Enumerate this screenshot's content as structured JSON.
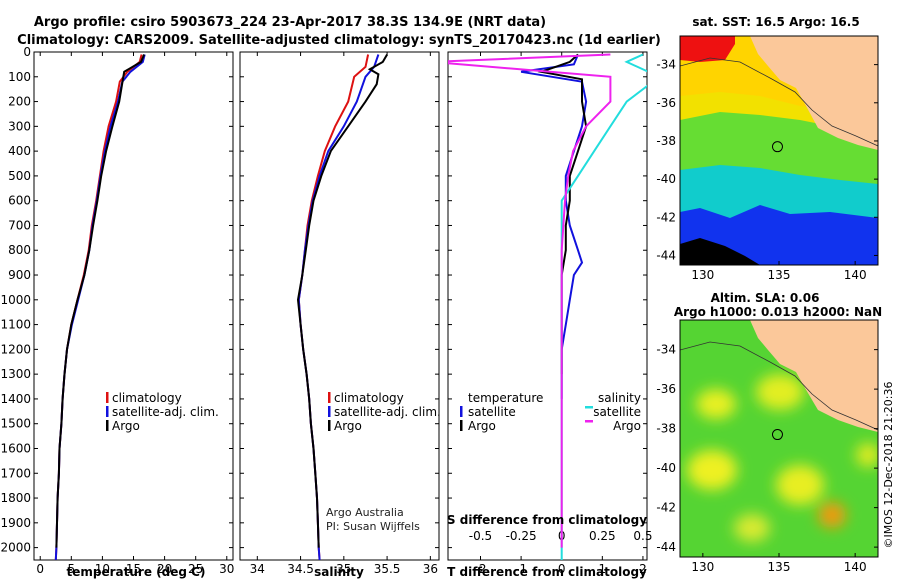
{
  "header": {
    "line1": "Argo profile: csiro 5903673_224 23-Apr-2017 38.3S 134.9E (NRT data)",
    "line2": "Climatology: CARS2009. Satellite-adjusted climatology: synTS_20170423.nc (1d earlier)"
  },
  "credits": {
    "org": "Argo Australia",
    "pi": "PI: Susan Wijffels",
    "side": "©IMOS 12-Dec-2018 21:20:36"
  },
  "colors": {
    "climatology": "#dd1111",
    "satellite": "#1111dd",
    "argo": "#000000",
    "argo_s": "#ee22ee",
    "satellite_s": "#22dddd"
  },
  "chart_data": [
    {
      "id": "temperature",
      "type": "line",
      "xlabel": "temperature (deg C)",
      "ylabel": "",
      "xlim": [
        -1,
        31
      ],
      "ylim": [
        2050,
        0
      ],
      "xticks": [
        0,
        5,
        10,
        15,
        20,
        25,
        30
      ],
      "yticks": [
        0,
        100,
        200,
        300,
        400,
        500,
        600,
        700,
        800,
        900,
        1000,
        1100,
        1200,
        1300,
        1400,
        1500,
        1600,
        1700,
        1800,
        1900,
        2000
      ],
      "legend": [
        "climatology",
        "satellite-adj. clim.",
        "Argo"
      ],
      "series": [
        {
          "name": "climatology",
          "points": [
            [
              16.3,
              10
            ],
            [
              16,
              40
            ],
            [
              14,
              80
            ],
            [
              12.8,
              120
            ],
            [
              12.2,
              200
            ],
            [
              11,
              300
            ],
            [
              10.2,
              400
            ],
            [
              9.6,
              500
            ],
            [
              9,
              600
            ],
            [
              8.3,
              700
            ],
            [
              7.8,
              800
            ],
            [
              7,
              900
            ],
            [
              6,
              1000
            ],
            [
              5,
              1100
            ],
            [
              4.3,
              1200
            ],
            [
              3.9,
              1300
            ],
            [
              3.6,
              1400
            ],
            [
              3.4,
              1500
            ],
            [
              3.1,
              1600
            ],
            [
              3,
              1700
            ],
            [
              2.8,
              1800
            ],
            [
              2.7,
              1900
            ],
            [
              2.6,
              2000
            ],
            [
              2.5,
              2050
            ]
          ]
        },
        {
          "name": "satellite-adj. clim.",
          "points": [
            [
              16.8,
              10
            ],
            [
              16.5,
              40
            ],
            [
              14.5,
              80
            ],
            [
              13.2,
              120
            ],
            [
              12.5,
              200
            ],
            [
              11.3,
              300
            ],
            [
              10.4,
              400
            ],
            [
              9.7,
              500
            ],
            [
              9.1,
              600
            ],
            [
              8.4,
              700
            ],
            [
              7.9,
              800
            ],
            [
              7.1,
              900
            ],
            [
              6.1,
              1000
            ],
            [
              5.1,
              1100
            ],
            [
              4.3,
              1200
            ],
            [
              3.9,
              1300
            ],
            [
              3.6,
              1400
            ],
            [
              3.4,
              1500
            ],
            [
              3.1,
              1600
            ],
            [
              3,
              1700
            ],
            [
              2.8,
              1800
            ],
            [
              2.7,
              1900
            ],
            [
              2.6,
              2000
            ],
            [
              2.5,
              2050
            ]
          ]
        },
        {
          "name": "Argo",
          "points": [
            [
              16.7,
              10
            ],
            [
              16.2,
              40
            ],
            [
              13.5,
              80
            ],
            [
              13.3,
              110
            ],
            [
              12.7,
              200
            ],
            [
              11.6,
              300
            ],
            [
              10.6,
              400
            ],
            [
              9.8,
              500
            ],
            [
              9.2,
              600
            ],
            [
              8.5,
              700
            ],
            [
              7.9,
              800
            ],
            [
              7.1,
              900
            ],
            [
              6,
              1000
            ],
            [
              5,
              1100
            ],
            [
              4.3,
              1200
            ],
            [
              3.9,
              1300
            ],
            [
              3.6,
              1400
            ],
            [
              3.4,
              1500
            ],
            [
              3.1,
              1600
            ],
            [
              3,
              1700
            ],
            [
              2.8,
              1800
            ],
            [
              2.7,
              1900
            ],
            [
              2.6,
              2000
            ]
          ]
        }
      ]
    },
    {
      "id": "salinity",
      "type": "line",
      "xlabel": "salinity",
      "ylabel": "",
      "xlim": [
        33.8,
        36.1
      ],
      "ylim": [
        2050,
        0
      ],
      "xticks": [
        34,
        34.5,
        35,
        35.5,
        36
      ],
      "legend": [
        "climatology",
        "satellite-adj. clim.",
        "Argo"
      ],
      "series": [
        {
          "name": "climatology",
          "points": [
            [
              35.28,
              10
            ],
            [
              35.25,
              60
            ],
            [
              35.12,
              100
            ],
            [
              35.05,
              200
            ],
            [
              34.9,
              300
            ],
            [
              34.78,
              400
            ],
            [
              34.7,
              500
            ],
            [
              34.63,
              600
            ],
            [
              34.58,
              700
            ],
            [
              34.55,
              800
            ],
            [
              34.52,
              900
            ],
            [
              34.48,
              1000
            ],
            [
              34.5,
              1100
            ],
            [
              34.53,
              1200
            ],
            [
              34.57,
              1300
            ],
            [
              34.6,
              1400
            ],
            [
              34.62,
              1500
            ],
            [
              34.65,
              1600
            ],
            [
              34.67,
              1700
            ],
            [
              34.69,
              1800
            ],
            [
              34.7,
              1900
            ],
            [
              34.71,
              2000
            ],
            [
              34.72,
              2050
            ]
          ]
        },
        {
          "name": "satellite-adj. clim.",
          "points": [
            [
              35.4,
              10
            ],
            [
              35.35,
              60
            ],
            [
              35.25,
              100
            ],
            [
              35.15,
              200
            ],
            [
              35,
              300
            ],
            [
              34.82,
              400
            ],
            [
              34.72,
              500
            ],
            [
              34.64,
              600
            ],
            [
              34.59,
              700
            ],
            [
              34.55,
              800
            ],
            [
              34.52,
              900
            ],
            [
              34.48,
              1000
            ],
            [
              34.5,
              1100
            ],
            [
              34.53,
              1200
            ],
            [
              34.57,
              1300
            ],
            [
              34.6,
              1400
            ],
            [
              34.62,
              1500
            ],
            [
              34.65,
              1600
            ],
            [
              34.67,
              1700
            ],
            [
              34.69,
              1800
            ],
            [
              34.7,
              1900
            ],
            [
              34.71,
              2000
            ],
            [
              34.72,
              2050
            ]
          ]
        },
        {
          "name": "Argo",
          "points": [
            [
              35.5,
              10
            ],
            [
              35.45,
              40
            ],
            [
              35.3,
              70
            ],
            [
              35.4,
              90
            ],
            [
              35.38,
              130
            ],
            [
              35.25,
              200
            ],
            [
              35.05,
              300
            ],
            [
              34.85,
              400
            ],
            [
              34.74,
              500
            ],
            [
              34.65,
              600
            ],
            [
              34.6,
              700
            ],
            [
              34.56,
              800
            ],
            [
              34.52,
              900
            ],
            [
              34.47,
              1000
            ],
            [
              34.5,
              1100
            ],
            [
              34.53,
              1200
            ],
            [
              34.57,
              1300
            ],
            [
              34.6,
              1400
            ],
            [
              34.62,
              1500
            ],
            [
              34.65,
              1600
            ],
            [
              34.67,
              1700
            ],
            [
              34.69,
              1800
            ],
            [
              34.7,
              1900
            ],
            [
              34.71,
              2000
            ]
          ]
        }
      ]
    },
    {
      "id": "difference",
      "type": "line",
      "xlabel": "T difference from climatology",
      "top_xlabel": "S difference from climatology",
      "ylabel": "",
      "xlim": [
        -2.8,
        2.1
      ],
      "s_xlim": [
        -0.7,
        0.525
      ],
      "ylim": [
        2050,
        0
      ],
      "xticks": [
        -2,
        -1,
        0,
        1,
        2
      ],
      "s_xticks": [
        -0.5,
        -0.25,
        0,
        0.25,
        0.5
      ],
      "s_xticklabels": [
        "-0.5",
        "-0.25",
        "0",
        "0.25",
        "0.5"
      ],
      "legend_headers": [
        "temperature",
        "salinity"
      ],
      "legend_left": [
        "satellite",
        "Argo"
      ],
      "legend_right": [
        "satellite",
        "Argo"
      ],
      "series": [
        {
          "name": "satellite",
          "quantity": "temperature",
          "points": [
            [
              0.4,
              10
            ],
            [
              0.3,
              50
            ],
            [
              -1,
              80
            ],
            [
              0.5,
              120
            ],
            [
              0.6,
              200
            ],
            [
              0.5,
              300
            ],
            [
              0.3,
              400
            ],
            [
              0.1,
              500
            ],
            [
              0.1,
              600
            ],
            [
              0.2,
              700
            ],
            [
              0.4,
              800
            ],
            [
              0.5,
              850
            ],
            [
              0.3,
              900
            ],
            [
              0.2,
              1000
            ],
            [
              0.1,
              1100
            ],
            [
              0,
              1200
            ],
            [
              0,
              1400
            ]
          ]
        },
        {
          "name": "Argo",
          "quantity": "temperature",
          "points": [
            [
              0.4,
              10
            ],
            [
              0.2,
              40
            ],
            [
              -0.5,
              80
            ],
            [
              0.5,
              110
            ],
            [
              0.5,
              200
            ],
            [
              0.6,
              300
            ],
            [
              0.4,
              400
            ],
            [
              0.2,
              500
            ],
            [
              0.2,
              600
            ],
            [
              0.1,
              700
            ],
            [
              0.1,
              800
            ],
            [
              0,
              900
            ],
            [
              0,
              1000
            ],
            [
              0,
              1100
            ],
            [
              0,
              1200
            ],
            [
              0,
              1300
            ]
          ]
        },
        {
          "name": "satellite",
          "quantity": "salinity",
          "points": [
            [
              0.5,
              10
            ],
            [
              0.4,
              40
            ],
            [
              0.6,
              100
            ],
            [
              0.4,
              200
            ],
            [
              0.3,
              300
            ],
            [
              0.2,
              400
            ],
            [
              0.1,
              500
            ],
            [
              0,
              600
            ],
            [
              0,
              800
            ],
            [
              0,
              1000
            ],
            [
              0,
              1500
            ],
            [
              0,
              2000
            ],
            [
              0,
              2050
            ]
          ]
        },
        {
          "name": "Argo",
          "quantity": "salinity",
          "points": [
            [
              0.3,
              10
            ],
            [
              -0.8,
              40
            ],
            [
              0.3,
              100
            ],
            [
              0.3,
              200
            ],
            [
              0.15,
              300
            ],
            [
              0.07,
              400
            ],
            [
              0.04,
              500
            ],
            [
              0.02,
              600
            ],
            [
              0,
              800
            ],
            [
              0,
              1000
            ],
            [
              0,
              1500
            ],
            [
              0,
              2000
            ]
          ]
        }
      ]
    },
    {
      "id": "sst_map",
      "type": "heatmap",
      "title": "sat. SST: 16.5 Argo: 16.5",
      "xlim": [
        128.5,
        141.5
      ],
      "ylim": [
        -44.5,
        -32.5
      ],
      "xticks": [
        130,
        135,
        140
      ],
      "yticks": [
        -34,
        -36,
        -38,
        -40,
        -42,
        -44
      ],
      "marker": [
        134.9,
        -38.3
      ]
    },
    {
      "id": "sla_map",
      "type": "heatmap",
      "title": "Altim. SLA: 0.06",
      "subtitle": "Argo h1000: 0.013 h2000: NaN",
      "xlim": [
        128.5,
        141.5
      ],
      "ylim": [
        -44.5,
        -32.5
      ],
      "xticks": [
        130,
        135,
        140
      ],
      "yticks": [
        -34,
        -36,
        -38,
        -40,
        -42,
        -44
      ],
      "marker": [
        134.9,
        -38.3
      ]
    }
  ]
}
